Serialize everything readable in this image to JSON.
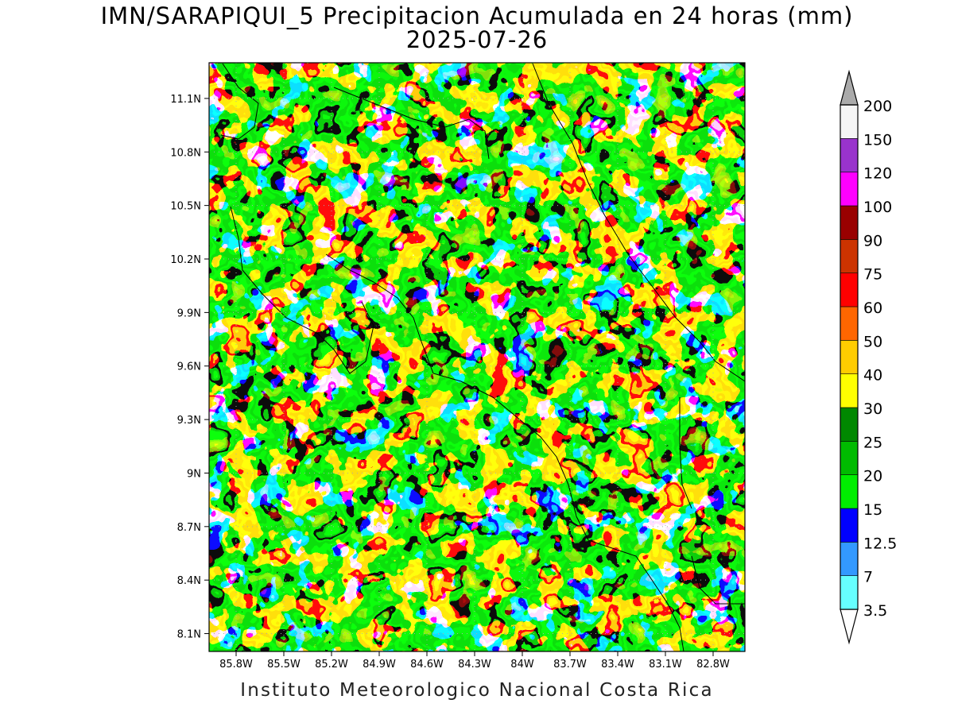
{
  "title_line1": "IMN/SARAPIQUI_5 Precipitacion Acumulada en 24 horas (mm)",
  "title_line2": "2025-07-26",
  "footer": "Instituto Meteorologico Nacional Costa Rica",
  "map": {
    "lon_range": [
      -85.97,
      -82.6
    ],
    "lat_range": [
      8.0,
      11.3
    ],
    "x_ticks": [
      "85.8W",
      "85.5W",
      "85.2W",
      "84.9W",
      "84.6W",
      "84.3W",
      "84W",
      "83.7W",
      "83.4W",
      "83.1W",
      "82.8W"
    ],
    "y_ticks": [
      "11.1N",
      "10.8N",
      "10.5N",
      "10.2N",
      "9.9N",
      "9.6N",
      "9.3N",
      "9N",
      "8.7N",
      "8.4N",
      "8.1N"
    ]
  },
  "colorbar": {
    "unit": "mm",
    "levels": [
      {
        "label": "3.5",
        "color": "#66ffff"
      },
      {
        "label": "7",
        "color": "#3399ff"
      },
      {
        "label": "12.5",
        "color": "#0000ff"
      },
      {
        "label": "15",
        "color": "#00ee00"
      },
      {
        "label": "20",
        "color": "#00bb00"
      },
      {
        "label": "25",
        "color": "#008800"
      },
      {
        "label": "30",
        "color": "#ffff00"
      },
      {
        "label": "40",
        "color": "#ffcc00"
      },
      {
        "label": "50",
        "color": "#ff6600"
      },
      {
        "label": "60",
        "color": "#ff0000"
      },
      {
        "label": "75",
        "color": "#cc3300"
      },
      {
        "label": "90",
        "color": "#990000"
      },
      {
        "label": "100",
        "color": "#ff00ff"
      },
      {
        "label": "120",
        "color": "#9933cc"
      },
      {
        "label": "150",
        "color": "#f5f5f5"
      },
      {
        "label": "200",
        "color": "#aaaaaa"
      }
    ]
  }
}
